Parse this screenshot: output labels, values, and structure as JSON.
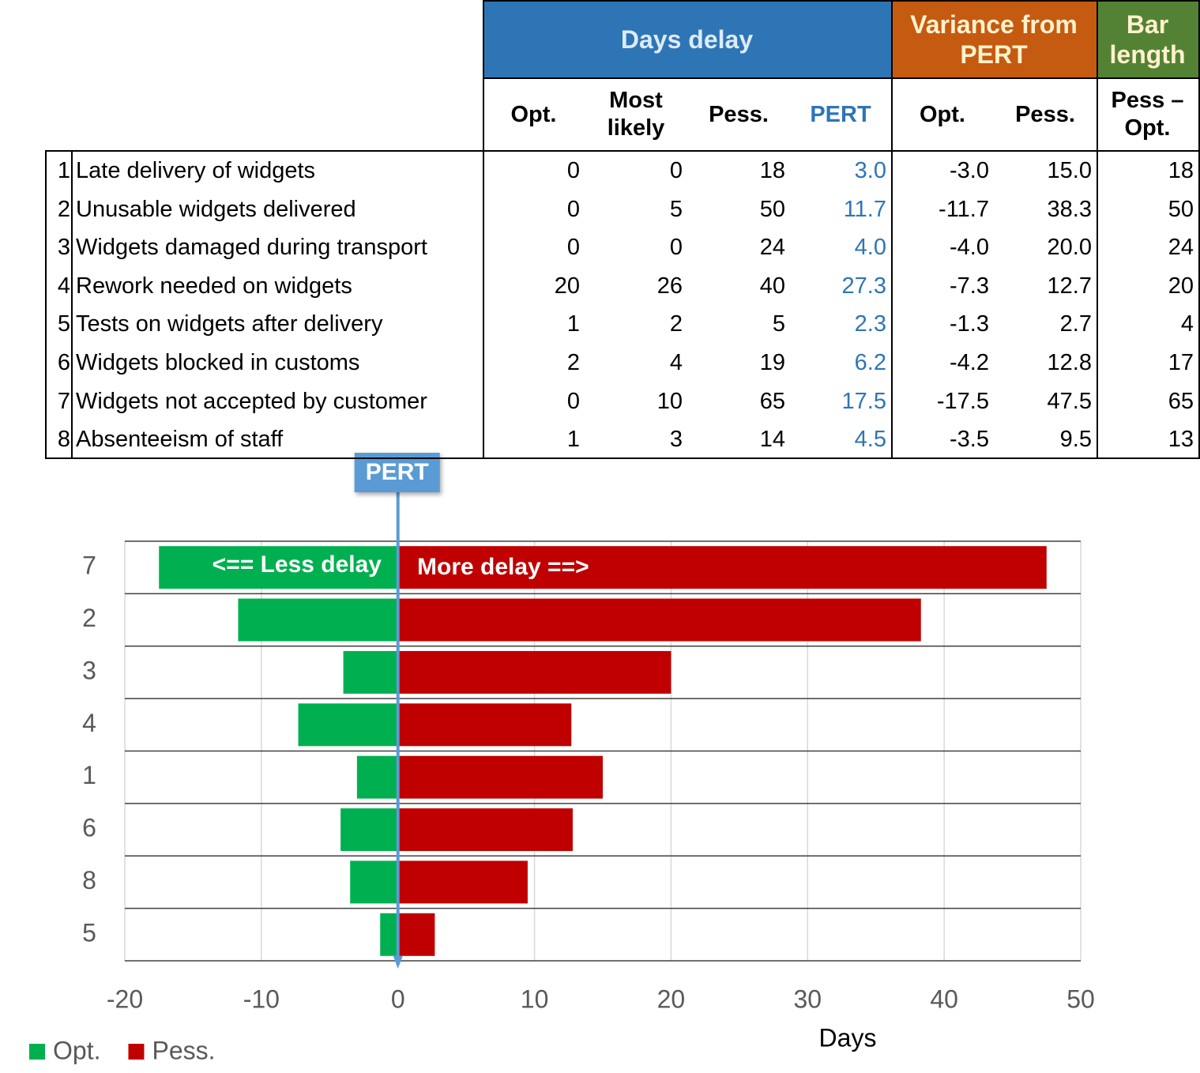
{
  "table": {
    "groups": [
      "Days delay",
      "Variance from PERT",
      "Bar length"
    ],
    "columns": [
      "Opt.",
      "Most likely",
      "Pess.",
      "PERT",
      "Opt.",
      "Pess.",
      "Pess – Opt."
    ],
    "rows": [
      [
        "1",
        "Late delivery of widgets",
        "0",
        "0",
        "18",
        "3.0",
        "-3.0",
        "15.0",
        "18"
      ],
      [
        "2",
        "Unusable widgets delivered",
        "0",
        "5",
        "50",
        "11.7",
        "-11.7",
        "38.3",
        "50"
      ],
      [
        "3",
        "Widgets damaged during transport",
        "0",
        "0",
        "24",
        "4.0",
        "-4.0",
        "20.0",
        "24"
      ],
      [
        "4",
        "Rework needed on widgets",
        "20",
        "26",
        "40",
        "27.3",
        "-7.3",
        "12.7",
        "20"
      ],
      [
        "5",
        "Tests on widgets after delivery",
        "1",
        "2",
        "5",
        "2.3",
        "-1.3",
        "2.7",
        "4"
      ],
      [
        "6",
        "Widgets blocked in customs",
        "2",
        "4",
        "19",
        "6.2",
        "-4.2",
        "12.8",
        "17"
      ],
      [
        "7",
        "Widgets not accepted by customer",
        "0",
        "10",
        "65",
        "17.5",
        "-17.5",
        "47.5",
        "65"
      ],
      [
        "8",
        "Absenteeism of staff",
        "1",
        "3",
        "14",
        "4.5",
        "-3.5",
        "9.5",
        "13"
      ]
    ]
  },
  "chart_data": {
    "type": "diverging-bar",
    "categories": [
      "7",
      "2",
      "3",
      "4",
      "1",
      "6",
      "8",
      "5"
    ],
    "series": [
      {
        "name": "Opt.",
        "color": "#00b050",
        "values": [
          -17.5,
          -11.7,
          -4.0,
          -7.3,
          -3.0,
          -4.2,
          -3.5,
          -1.3
        ]
      },
      {
        "name": "Pess.",
        "color": "#c00000",
        "values": [
          47.5,
          38.3,
          20.0,
          12.7,
          15.0,
          12.8,
          9.5,
          2.7
        ]
      }
    ],
    "xlim": [
      -20,
      50
    ],
    "xticks": [
      -20,
      -10,
      0,
      10,
      20,
      30,
      40,
      50
    ],
    "x_label": "Days",
    "grid": true,
    "legend": "bottom-left",
    "annotations": [
      "<== Less delay",
      "More delay ==>"
    ],
    "reference_line": {
      "label": "PERT",
      "value": 0,
      "color": "#5b9bd5"
    }
  }
}
